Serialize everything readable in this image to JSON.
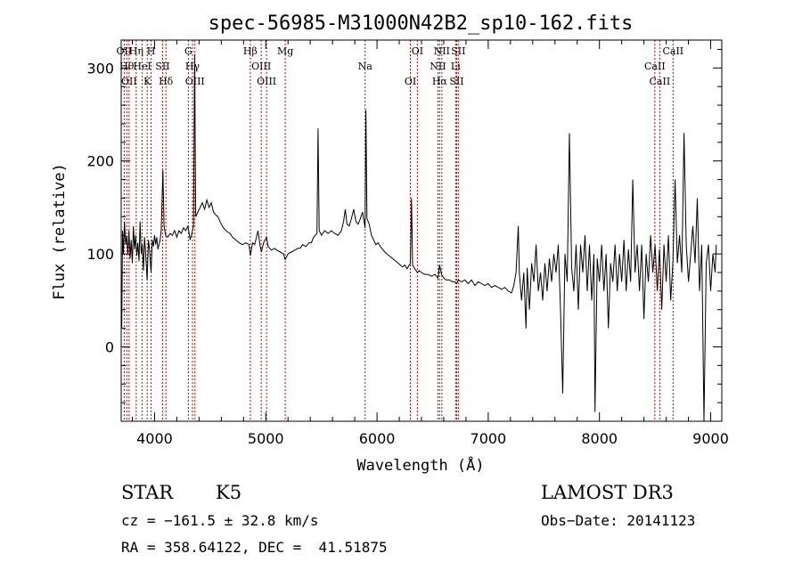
{
  "chart_data": {
    "type": "line",
    "title": "spec-56985-M31000N42B2_sp10-162.fits",
    "xlabel": "Wavelength (Å)",
    "ylabel": "Flux (relative)",
    "xlim": [
      3700,
      9100
    ],
    "ylim": [
      -80,
      330
    ],
    "xticks": [
      4000,
      5000,
      6000,
      7000,
      8000,
      9000
    ],
    "yticks": [
      0,
      100,
      200,
      300
    ],
    "grid": false,
    "series": [
      {
        "color": "#000000",
        "points": [
          [
            3700,
            40
          ],
          [
            3705,
            20
          ],
          [
            3712,
            125
          ],
          [
            3720,
            100
          ],
          [
            3730,
            135
          ],
          [
            3740,
            110
          ],
          [
            3750,
            120
          ],
          [
            3760,
            100
          ],
          [
            3770,
            125
          ],
          [
            3780,
            95
          ],
          [
            3790,
            115
          ],
          [
            3800,
            90
          ],
          [
            3810,
            130
          ],
          [
            3820,
            105
          ],
          [
            3830,
            120
          ],
          [
            3840,
            98
          ],
          [
            3850,
            112
          ],
          [
            3860,
            92
          ],
          [
            3870,
            135
          ],
          [
            3880,
            100
          ],
          [
            3890,
            110
          ],
          [
            3900,
            82
          ],
          [
            3910,
            118
          ],
          [
            3920,
            100
          ],
          [
            3933,
            72
          ],
          [
            3945,
            115
          ],
          [
            3955,
            105
          ],
          [
            3968,
            80
          ],
          [
            3980,
            115
          ],
          [
            3990,
            108
          ],
          [
            4000,
            120
          ],
          [
            4010,
            110
          ],
          [
            4020,
            118
          ],
          [
            4030,
            105
          ],
          [
            4050,
            115
          ],
          [
            4060,
            125
          ],
          [
            4075,
            190
          ],
          [
            4085,
            130
          ],
          [
            4100,
            120
          ],
          [
            4120,
            118
          ],
          [
            4140,
            122
          ],
          [
            4160,
            120
          ],
          [
            4180,
            125
          ],
          [
            4200,
            118
          ],
          [
            4220,
            125
          ],
          [
            4240,
            122
          ],
          [
            4260,
            128
          ],
          [
            4280,
            125
          ],
          [
            4300,
            130
          ],
          [
            4320,
            115
          ],
          [
            4335,
            122
          ],
          [
            4350,
            130
          ],
          [
            4360,
            315
          ],
          [
            4370,
            140
          ],
          [
            4390,
            145
          ],
          [
            4410,
            150
          ],
          [
            4430,
            155
          ],
          [
            4450,
            148
          ],
          [
            4470,
            158
          ],
          [
            4490,
            150
          ],
          [
            4510,
            155
          ],
          [
            4530,
            145
          ],
          [
            4550,
            142
          ],
          [
            4570,
            140
          ],
          [
            4600,
            132
          ],
          [
            4620,
            128
          ],
          [
            4650,
            124
          ],
          [
            4680,
            122
          ],
          [
            4700,
            118
          ],
          [
            4730,
            115
          ],
          [
            4760,
            112
          ],
          [
            4790,
            110
          ],
          [
            4820,
            112
          ],
          [
            4850,
            110
          ],
          [
            4862,
            98
          ],
          [
            4880,
            112
          ],
          [
            4900,
            110
          ],
          [
            4930,
            125
          ],
          [
            4950,
            108
          ],
          [
            4960,
            102
          ],
          [
            4980,
            112
          ],
          [
            5007,
            118
          ],
          [
            5020,
            108
          ],
          [
            5050,
            104
          ],
          [
            5080,
            106
          ],
          [
            5100,
            104
          ],
          [
            5130,
            102
          ],
          [
            5160,
            100
          ],
          [
            5175,
            94
          ],
          [
            5200,
            100
          ],
          [
            5230,
            102
          ],
          [
            5260,
            104
          ],
          [
            5290,
            106
          ],
          [
            5310,
            106
          ],
          [
            5330,
            110
          ],
          [
            5360,
            108
          ],
          [
            5390,
            112
          ],
          [
            5410,
            112
          ],
          [
            5430,
            118
          ],
          [
            5460,
            122
          ],
          [
            5470,
            235
          ],
          [
            5480,
            125
          ],
          [
            5500,
            120
          ],
          [
            5530,
            125
          ],
          [
            5560,
            122
          ],
          [
            5590,
            125
          ],
          [
            5620,
            122
          ],
          [
            5650,
            120
          ],
          [
            5680,
            125
          ],
          [
            5700,
            135
          ],
          [
            5715,
            148
          ],
          [
            5730,
            132
          ],
          [
            5750,
            130
          ],
          [
            5770,
            138
          ],
          [
            5790,
            148
          ],
          [
            5810,
            135
          ],
          [
            5830,
            132
          ],
          [
            5850,
            138
          ],
          [
            5870,
            145
          ],
          [
            5893,
            128
          ],
          [
            5900,
            255
          ],
          [
            5910,
            138
          ],
          [
            5930,
            132
          ],
          [
            5950,
            120
          ],
          [
            5970,
            115
          ],
          [
            5990,
            110
          ],
          [
            6010,
            112
          ],
          [
            6030,
            108
          ],
          [
            6050,
            105
          ],
          [
            6070,
            102
          ],
          [
            6090,
            100
          ],
          [
            6110,
            98
          ],
          [
            6130,
            96
          ],
          [
            6150,
            94
          ],
          [
            6170,
            92
          ],
          [
            6190,
            90
          ],
          [
            6210,
            88
          ],
          [
            6230,
            86
          ],
          [
            6250,
            88
          ],
          [
            6270,
            84
          ],
          [
            6300,
            90
          ],
          [
            6310,
            160
          ],
          [
            6320,
            88
          ],
          [
            6340,
            84
          ],
          [
            6363,
            80
          ],
          [
            6380,
            82
          ],
          [
            6400,
            80
          ],
          [
            6430,
            78
          ],
          [
            6460,
            78
          ],
          [
            6490,
            76
          ],
          [
            6520,
            78
          ],
          [
            6548,
            74
          ],
          [
            6563,
            88
          ],
          [
            6580,
            78
          ],
          [
            6600,
            74
          ],
          [
            6620,
            72
          ],
          [
            6650,
            72
          ],
          [
            6680,
            70
          ],
          [
            6700,
            70
          ],
          [
            6716,
            68
          ],
          [
            6731,
            72
          ],
          [
            6760,
            70
          ],
          [
            6790,
            72
          ],
          [
            6820,
            68
          ],
          [
            6850,
            72
          ],
          [
            6880,
            66
          ],
          [
            6910,
            70
          ],
          [
            6940,
            68
          ],
          [
            6970,
            66
          ],
          [
            7000,
            68
          ],
          [
            7030,
            64
          ],
          [
            7060,
            66
          ],
          [
            7090,
            64
          ],
          [
            7120,
            62
          ],
          [
            7150,
            64
          ],
          [
            7180,
            60
          ],
          [
            7210,
            58
          ],
          [
            7230,
            66
          ],
          [
            7250,
            80
          ],
          [
            7270,
            130
          ],
          [
            7280,
            80
          ],
          [
            7300,
            50
          ],
          [
            7320,
            80
          ],
          [
            7340,
            20
          ],
          [
            7350,
            85
          ],
          [
            7370,
            40
          ],
          [
            7390,
            90
          ],
          [
            7410,
            70
          ],
          [
            7430,
            110
          ],
          [
            7450,
            60
          ],
          [
            7470,
            80
          ],
          [
            7490,
            50
          ],
          [
            7510,
            90
          ],
          [
            7530,
            60
          ],
          [
            7550,
            95
          ],
          [
            7570,
            70
          ],
          [
            7590,
            100
          ],
          [
            7610,
            80
          ],
          [
            7630,
            110
          ],
          [
            7650,
            40
          ],
          [
            7670,
            -50
          ],
          [
            7690,
            100
          ],
          [
            7710,
            70
          ],
          [
            7730,
            230
          ],
          [
            7750,
            85
          ],
          [
            7770,
            60
          ],
          [
            7790,
            110
          ],
          [
            7810,
            40
          ],
          [
            7830,
            110
          ],
          [
            7850,
            80
          ],
          [
            7870,
            120
          ],
          [
            7890,
            60
          ],
          [
            7910,
            110
          ],
          [
            7930,
            50
          ],
          [
            7950,
            100
          ],
          [
            7960,
            -70
          ],
          [
            7980,
            95
          ],
          [
            8000,
            70
          ],
          [
            8020,
            110
          ],
          [
            8040,
            60
          ],
          [
            8060,
            100
          ],
          [
            8080,
            20
          ],
          [
            8100,
            90
          ],
          [
            8120,
            70
          ],
          [
            8140,
            110
          ],
          [
            8160,
            60
          ],
          [
            8180,
            100
          ],
          [
            8200,
            70
          ],
          [
            8220,
            115
          ],
          [
            8240,
            60
          ],
          [
            8260,
            105
          ],
          [
            8280,
            70
          ],
          [
            8300,
            180
          ],
          [
            8320,
            80
          ],
          [
            8340,
            110
          ],
          [
            8360,
            60
          ],
          [
            8380,
            110
          ],
          [
            8400,
            30
          ],
          [
            8420,
            100
          ],
          [
            8440,
            70
          ],
          [
            8460,
            120
          ],
          [
            8480,
            80
          ],
          [
            8500,
            110
          ],
          [
            8520,
            60
          ],
          [
            8540,
            105
          ],
          [
            8560,
            40
          ],
          [
            8580,
            110
          ],
          [
            8600,
            70
          ],
          [
            8620,
            120
          ],
          [
            8640,
            50
          ],
          [
            8660,
            90
          ],
          [
            8680,
            180
          ],
          [
            8700,
            90
          ],
          [
            8720,
            120
          ],
          [
            8740,
            80
          ],
          [
            8760,
            230
          ],
          [
            8780,
            110
          ],
          [
            8800,
            70
          ],
          [
            8820,
            100
          ],
          [
            8840,
            130
          ],
          [
            8860,
            90
          ],
          [
            8880,
            160
          ],
          [
            8900,
            60
          ],
          [
            8920,
            110
          ],
          [
            8940,
            -80
          ],
          [
            8960,
            90
          ],
          [
            8980,
            110
          ],
          [
            9000,
            60
          ],
          [
            9020,
            100
          ],
          [
            9040,
            80
          ],
          [
            9050,
            110
          ]
        ]
      }
    ],
    "lines": [
      {
        "x": 3727,
        "labels": [
          "OII"
        ]
      },
      {
        "x": 3750,
        "labels": [
          "Hθ"
        ]
      },
      {
        "x": 3771,
        "labels": [
          "OII"
        ]
      },
      {
        "x": 3835,
        "labels": [
          "Hη"
        ]
      },
      {
        "x": 3889,
        "labels": [
          "HeI"
        ]
      },
      {
        "x": 3934,
        "labels": [
          "K"
        ]
      },
      {
        "x": 3969,
        "labels": [
          "H"
        ]
      },
      {
        "x": 4072,
        "labels": [
          "SII"
        ]
      },
      {
        "x": 4102,
        "labels": [
          "Hδ"
        ]
      },
      {
        "x": 4304,
        "labels": [
          "G"
        ]
      },
      {
        "x": 4341,
        "labels": [
          "Hγ"
        ]
      },
      {
        "x": 4363,
        "labels": [
          "OIII"
        ]
      },
      {
        "x": 4861,
        "labels": [
          "Hβ"
        ]
      },
      {
        "x": 4959,
        "labels": [
          "OIII"
        ]
      },
      {
        "x": 5007,
        "labels": [
          "OIII"
        ]
      },
      {
        "x": 5175,
        "labels": [
          "Mg"
        ]
      },
      {
        "x": 5893,
        "labels": [
          "Na"
        ]
      },
      {
        "x": 6300,
        "labels": [
          "OI"
        ]
      },
      {
        "x": 6363,
        "labels": [
          "OI"
        ]
      },
      {
        "x": 6548,
        "labels": [
          "NII"
        ]
      },
      {
        "x": 6563,
        "labels": [
          "Hα"
        ]
      },
      {
        "x": 6583,
        "labels": [
          "NII"
        ]
      },
      {
        "x": 6707,
        "labels": [
          "Li"
        ]
      },
      {
        "x": 6716,
        "labels": [
          "SII"
        ]
      },
      {
        "x": 6731,
        "labels": [
          "SII"
        ]
      },
      {
        "x": 8498,
        "labels": [
          "CaII"
        ]
      },
      {
        "x": 8542,
        "labels": [
          "CaII"
        ]
      },
      {
        "x": 8662,
        "labels": [
          "CaII"
        ]
      }
    ],
    "colors": {
      "spectrum": "#000000",
      "marker_lines": "#cc0000",
      "axes": "#000000"
    }
  },
  "info": {
    "object_class": "STAR",
    "subclass": "K5",
    "survey": "LAMOST DR3",
    "cz": "cz = −161.5 ± 32.8 km/s",
    "obs_date": "Obs−Date: 20141123",
    "radec": "RA = 358.64122, DEC =  41.51875"
  }
}
